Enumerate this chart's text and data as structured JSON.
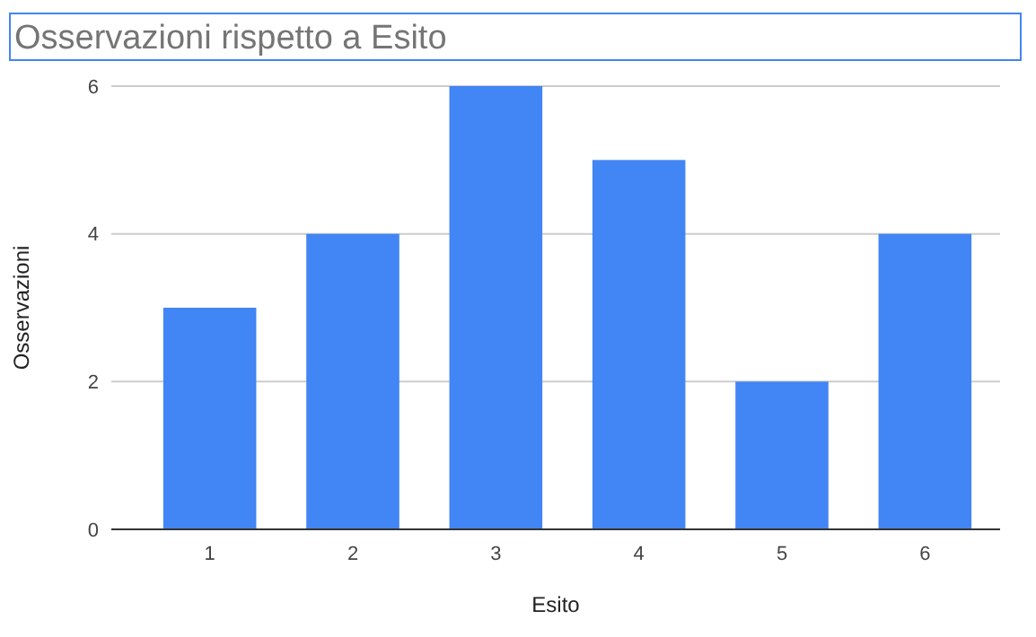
{
  "chart_data": {
    "type": "bar",
    "title": "Osservazioni rispetto a Esito",
    "xlabel": "Esito",
    "ylabel": "Osservazioni",
    "categories": [
      "1",
      "2",
      "3",
      "4",
      "5",
      "6"
    ],
    "values": [
      3,
      4,
      6,
      5,
      2,
      4
    ],
    "color": "#4285f4",
    "ylim": [
      0,
      6
    ],
    "yticks": [
      0,
      2,
      4,
      6
    ],
    "grid": "y"
  }
}
